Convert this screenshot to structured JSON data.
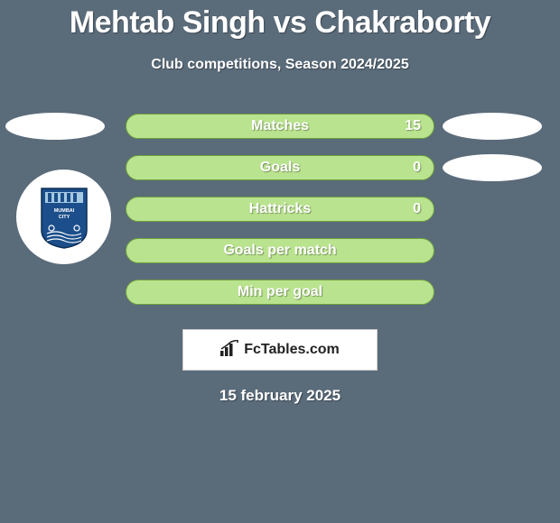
{
  "title": "Mehtab Singh vs Chakraborty",
  "subtitle": "Club competitions, Season 2024/2025",
  "date": "15 february 2025",
  "footer_brand": "FcTables.com",
  "colors": {
    "background": "#5a6b7a",
    "bar_fill": "#b9e38e",
    "bar_border": "#6ea03f",
    "text": "#ffffff",
    "badge_primary": "#1b4e8a",
    "badge_secondary": "#a6c9e2"
  },
  "stats": [
    {
      "label": "Matches",
      "value": "15"
    },
    {
      "label": "Goals",
      "value": "0"
    },
    {
      "label": "Hattricks",
      "value": "0"
    },
    {
      "label": "Goals per match",
      "value": ""
    },
    {
      "label": "Min per goal",
      "value": ""
    }
  ],
  "left_ellipse_row": 0,
  "right_ellipses_rows": [
    0,
    1
  ],
  "badge": {
    "club": "Mumbai City FC"
  }
}
